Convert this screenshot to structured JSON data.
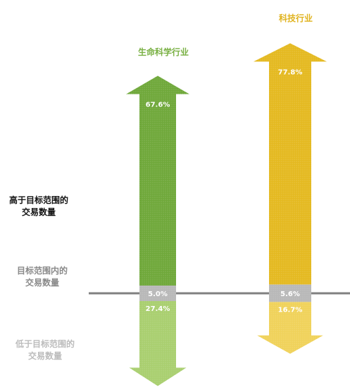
{
  "chart_data": {
    "type": "bar",
    "categories": [
      "生命科学行业",
      "科技行业"
    ],
    "series": [
      {
        "name": "高于目标范围的交易数量",
        "values": [
          67.6,
          77.8
        ]
      },
      {
        "name": "目标范围内的交易数量",
        "values": [
          5.0,
          5.6
        ]
      },
      {
        "name": "低于目标范围的交易数量",
        "values": [
          27.4,
          16.7
        ]
      }
    ],
    "value_labels": [
      [
        "67.6%",
        "5.0%",
        "27.4%"
      ],
      [
        "77.8%",
        "5.6%",
        "16.7%"
      ]
    ],
    "unit": "%",
    "colors": {
      "life_sciences_above": "#6fa83a",
      "life_sciences_below": "#a9cf6f",
      "tech_above": "#e4b920",
      "tech_below": "#f0d25a",
      "within": "#b8b8b8",
      "baseline": "#808080",
      "life_sciences_title": "#79b043",
      "tech_title": "#e0b31e"
    }
  },
  "row_labels": {
    "above": [
      "高于目标范围的",
      "交易数量"
    ],
    "within": [
      "目标范围内的",
      "交易数量"
    ],
    "below": [
      "低于目标范围的",
      "交易数量"
    ]
  },
  "row_label_colors": {
    "above": "#111111",
    "within": "#8a8a8a",
    "below": "#bcbcbc"
  }
}
